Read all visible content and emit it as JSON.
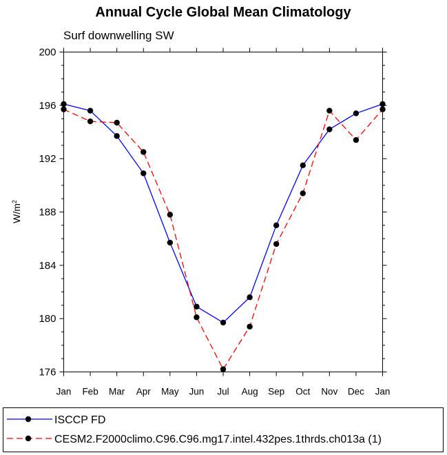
{
  "chart_data": {
    "type": "line",
    "title": "Annual Cycle Global Mean Climatology",
    "subtitle": "Surf downwelling SW",
    "ylabel": "W/m",
    "ylabel_superscript": "2",
    "xlabel": "",
    "categories": [
      "Jan",
      "Feb",
      "Mar",
      "Apr",
      "May",
      "Jun",
      "Jul",
      "Aug",
      "Sep",
      "Oct",
      "Nov",
      "Dec",
      "Jan"
    ],
    "ylim": [
      176,
      200
    ],
    "yticks": [
      176,
      180,
      184,
      188,
      192,
      196,
      200
    ],
    "ytick_labels": [
      "176",
      "180",
      "184",
      "188",
      "192",
      "196",
      "200"
    ],
    "grid": false,
    "legend_position": "bottom",
    "series": [
      {
        "name": "ISCCP FD",
        "color": "#0000ff",
        "line_style": "solid",
        "marker": "filled-circle",
        "values": [
          196.1,
          195.6,
          193.7,
          190.9,
          185.7,
          180.9,
          179.7,
          181.6,
          187.0,
          191.5,
          194.2,
          195.4,
          196.1
        ]
      },
      {
        "name": "CESM2.F2000climo.C96.C96.mg17.intel.432pes.1thrds.ch013a (1)",
        "color": "#ff0000",
        "line_style": "dashed",
        "marker": "filled-circle",
        "values": [
          195.7,
          194.8,
          194.7,
          192.5,
          187.8,
          180.1,
          176.2,
          179.4,
          185.6,
          189.4,
          195.6,
          193.4,
          195.7
        ]
      }
    ]
  }
}
